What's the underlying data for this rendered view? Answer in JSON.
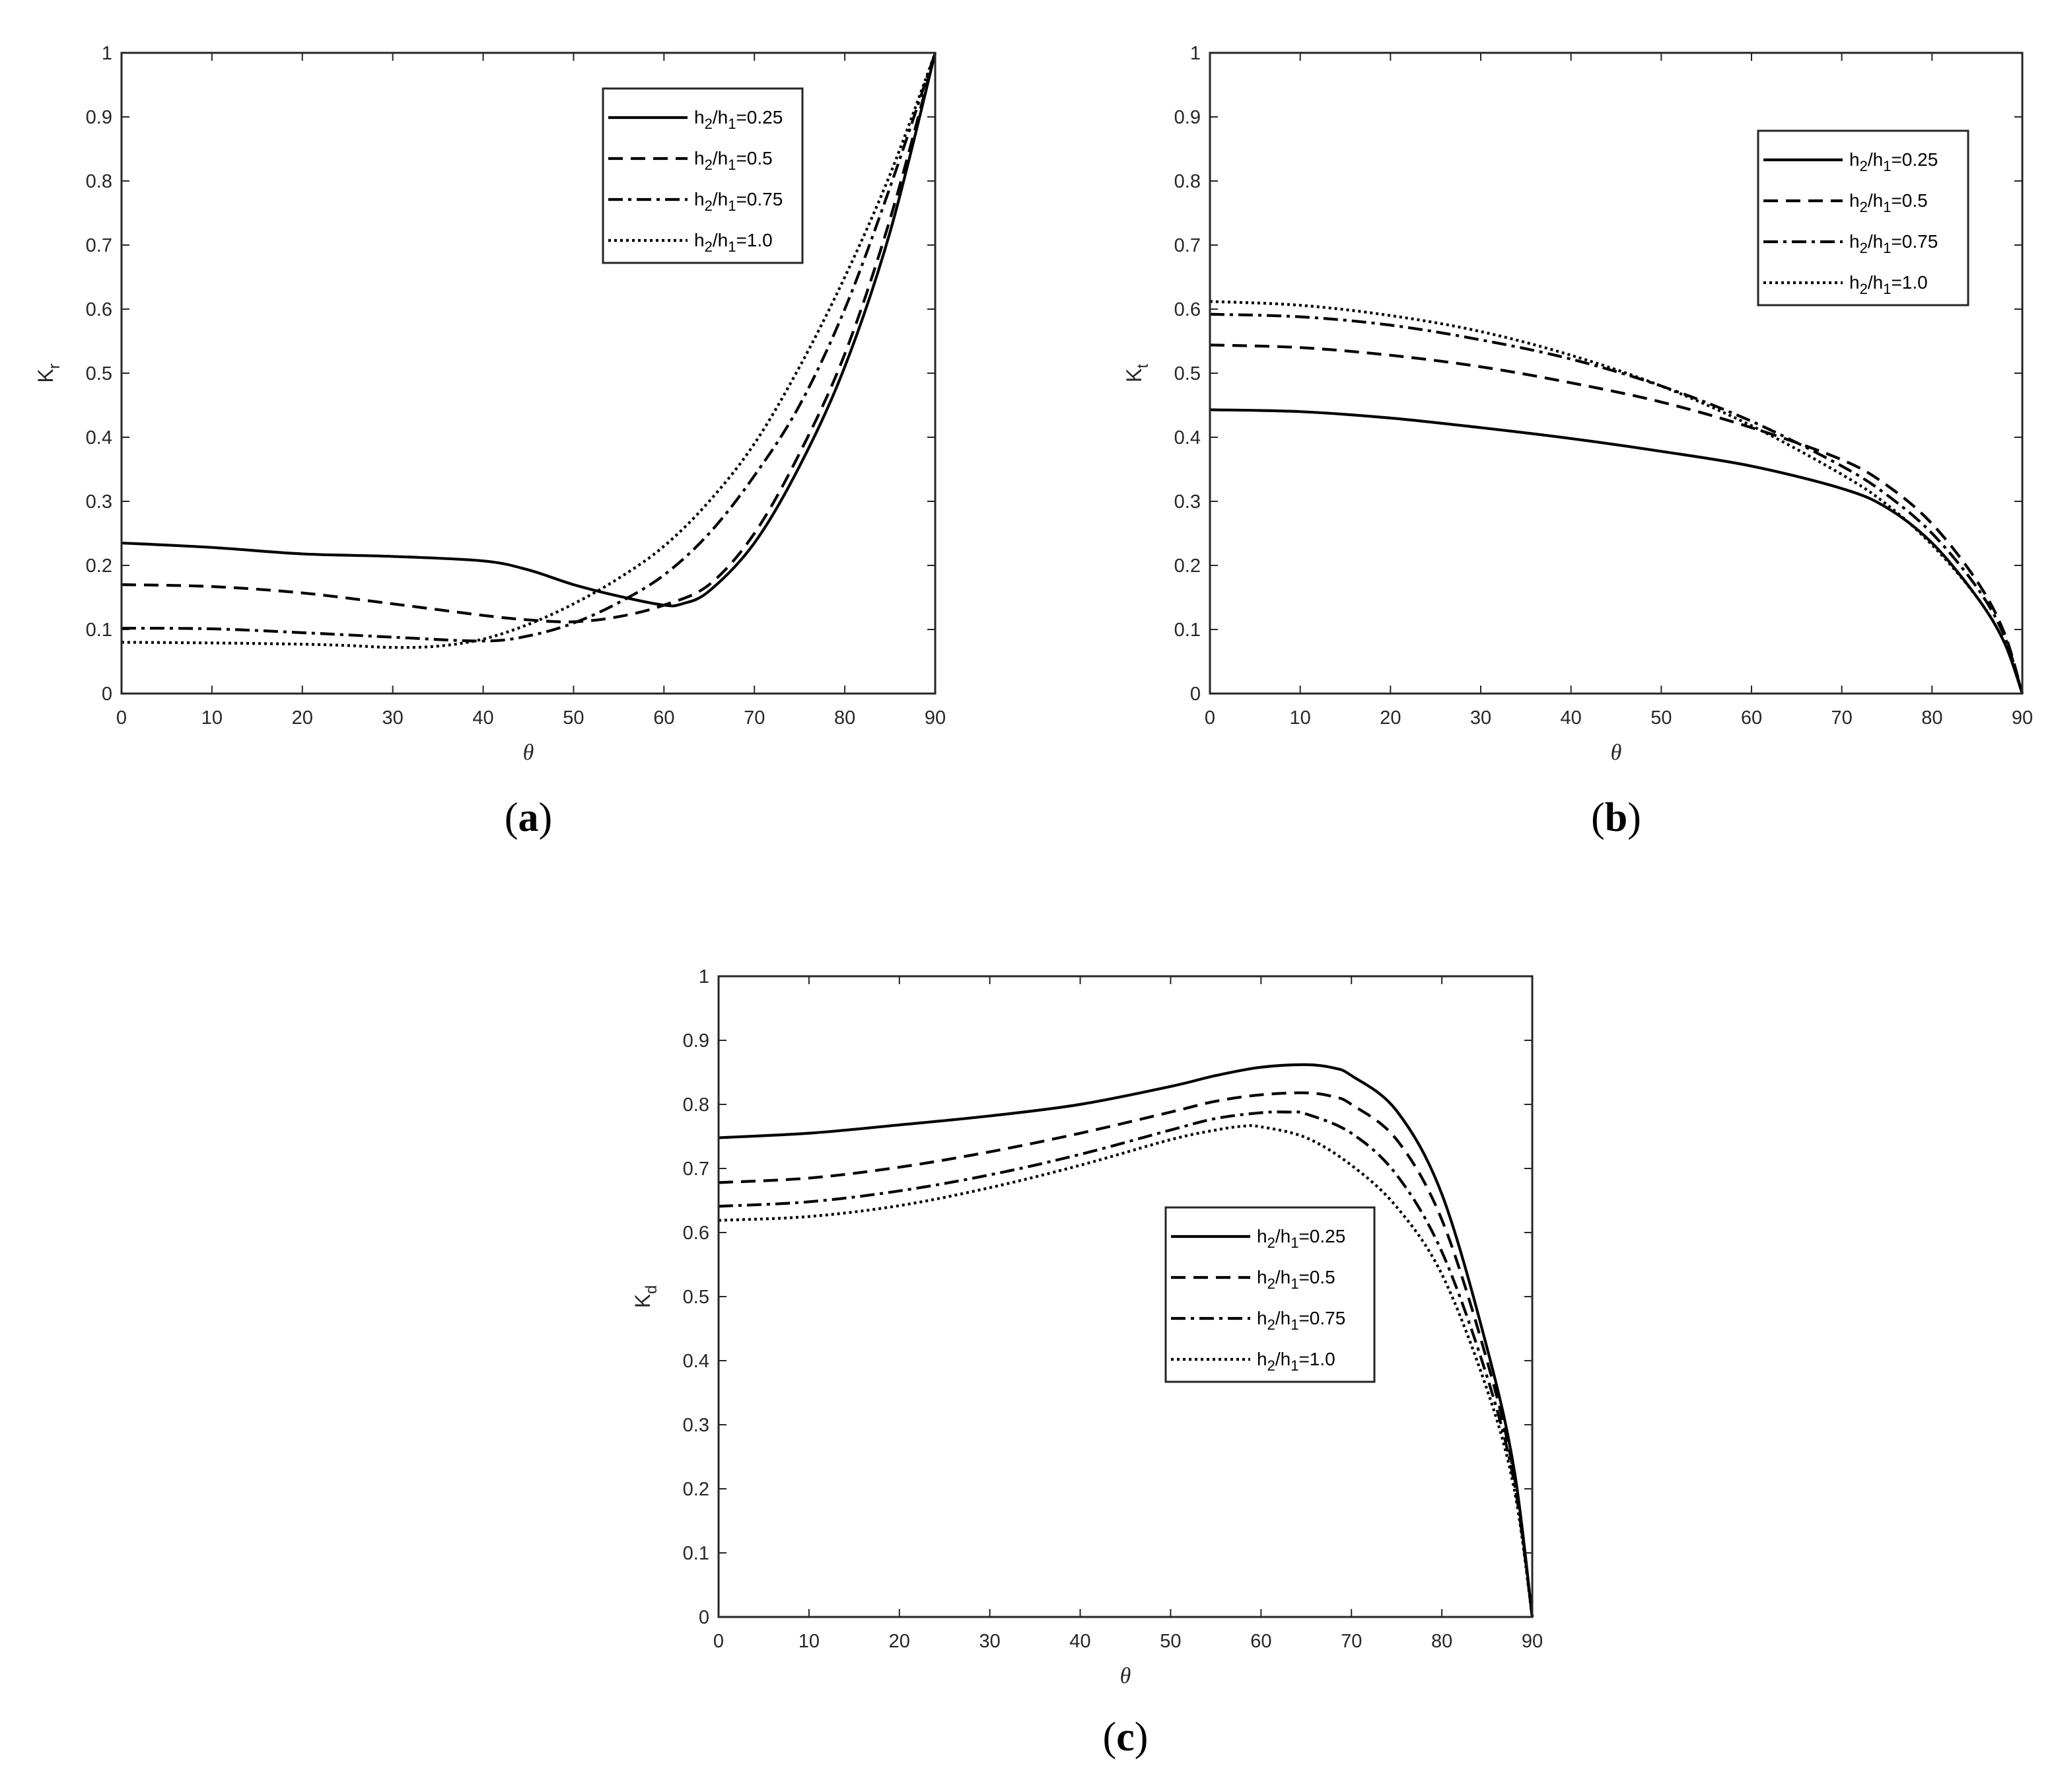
{
  "chart_data": [
    {
      "id": "a",
      "type": "line",
      "panel_label": {
        "open": "(",
        "letter": "a",
        "close": ")"
      },
      "xlabel": "θ",
      "ylabel": {
        "base": "K",
        "sub": "r"
      },
      "xlim": [
        0,
        90
      ],
      "ylim": [
        0,
        1
      ],
      "xticks": [
        "0",
        "10",
        "20",
        "30",
        "40",
        "50",
        "60",
        "70",
        "80",
        "90"
      ],
      "yticks": [
        "0",
        "0.1",
        "0.2",
        "0.3",
        "0.4",
        "0.5",
        "0.6",
        "0.7",
        "0.8",
        "0.9",
        "1"
      ],
      "grid": false,
      "legend_position": "top-right",
      "series": [
        {
          "name": "h2/h1=0.25",
          "style": "solid",
          "x": [
            0,
            10,
            20,
            30,
            40,
            45,
            50,
            55,
            60,
            62,
            65,
            70,
            75,
            80,
            85,
            90
          ],
          "y": [
            0.235,
            0.228,
            0.218,
            0.214,
            0.207,
            0.193,
            0.17,
            0.152,
            0.138,
            0.14,
            0.16,
            0.235,
            0.355,
            0.51,
            0.72,
            1.0
          ]
        },
        {
          "name": "h2/h1=0.5",
          "style": "dashed",
          "x": [
            0,
            10,
            20,
            30,
            40,
            45,
            50,
            55,
            60,
            65,
            70,
            75,
            80,
            85,
            90
          ],
          "y": [
            0.17,
            0.167,
            0.157,
            0.14,
            0.122,
            0.115,
            0.112,
            0.12,
            0.138,
            0.17,
            0.25,
            0.375,
            0.53,
            0.74,
            1.0
          ]
        },
        {
          "name": "h2/h1=0.75",
          "style": "dashdot",
          "x": [
            0,
            10,
            20,
            30,
            40,
            45,
            50,
            55,
            60,
            65,
            70,
            75,
            80,
            85,
            90
          ],
          "y": [
            0.102,
            0.101,
            0.095,
            0.088,
            0.082,
            0.09,
            0.11,
            0.142,
            0.185,
            0.25,
            0.34,
            0.45,
            0.6,
            0.79,
            1.0
          ]
        },
        {
          "name": "h2/h1=1.0",
          "style": "dotted",
          "x": [
            0,
            10,
            20,
            25,
            30,
            35,
            40,
            45,
            50,
            55,
            60,
            65,
            70,
            75,
            80,
            85,
            90
          ],
          "y": [
            0.08,
            0.079,
            0.077,
            0.075,
            0.072,
            0.074,
            0.085,
            0.108,
            0.14,
            0.18,
            0.23,
            0.3,
            0.39,
            0.51,
            0.65,
            0.81,
            1.0
          ]
        }
      ]
    },
    {
      "id": "b",
      "type": "line",
      "panel_label": {
        "open": "(",
        "letter": "b",
        "close": ")"
      },
      "xlabel": "θ",
      "ylabel": {
        "base": "K",
        "sub": "t"
      },
      "xlim": [
        0,
        90
      ],
      "ylim": [
        0,
        1
      ],
      "xticks": [
        "0",
        "10",
        "20",
        "30",
        "40",
        "50",
        "60",
        "70",
        "80",
        "90"
      ],
      "yticks": [
        "0",
        "0.1",
        "0.2",
        "0.3",
        "0.4",
        "0.5",
        "0.6",
        "0.7",
        "0.8",
        "0.9",
        "1"
      ],
      "grid": false,
      "legend_position": "top-right",
      "series": [
        {
          "name": "h2/h1=0.25",
          "style": "solid",
          "x": [
            0,
            10,
            20,
            30,
            40,
            50,
            60,
            70,
            75,
            80,
            85,
            88,
            90
          ],
          "y": [
            0.443,
            0.44,
            0.43,
            0.415,
            0.398,
            0.378,
            0.355,
            0.32,
            0.29,
            0.235,
            0.15,
            0.08,
            0.0
          ]
        },
        {
          "name": "h2/h1=0.5",
          "style": "dashed",
          "x": [
            0,
            10,
            20,
            30,
            40,
            50,
            60,
            70,
            75,
            80,
            85,
            88,
            90
          ],
          "y": [
            0.544,
            0.54,
            0.528,
            0.51,
            0.485,
            0.455,
            0.415,
            0.365,
            0.325,
            0.265,
            0.175,
            0.095,
            0.0
          ]
        },
        {
          "name": "h2/h1=0.75",
          "style": "dashdot",
          "x": [
            0,
            10,
            20,
            30,
            40,
            50,
            60,
            70,
            75,
            80,
            85,
            88,
            90
          ],
          "y": [
            0.592,
            0.588,
            0.575,
            0.552,
            0.522,
            0.48,
            0.425,
            0.355,
            0.31,
            0.25,
            0.165,
            0.09,
            0.0
          ]
        },
        {
          "name": "h2/h1=1.0",
          "style": "dotted",
          "x": [
            0,
            10,
            20,
            30,
            40,
            50,
            60,
            70,
            75,
            80,
            85,
            88,
            90
          ],
          "y": [
            0.612,
            0.606,
            0.59,
            0.565,
            0.528,
            0.48,
            0.418,
            0.342,
            0.295,
            0.232,
            0.15,
            0.08,
            0.0
          ]
        }
      ]
    },
    {
      "id": "c",
      "type": "line",
      "panel_label": {
        "open": "(",
        "letter": "c",
        "close": ")"
      },
      "xlabel": "θ",
      "ylabel": {
        "base": "K",
        "sub": "d"
      },
      "xlim": [
        0,
        90
      ],
      "ylim": [
        0,
        1
      ],
      "xticks": [
        "0",
        "10",
        "20",
        "30",
        "40",
        "50",
        "60",
        "70",
        "80",
        "90"
      ],
      "yticks": [
        "0",
        "0.1",
        "0.2",
        "0.3",
        "0.4",
        "0.5",
        "0.6",
        "0.7",
        "0.8",
        "0.9",
        "1"
      ],
      "grid": false,
      "legend_position": "center-right",
      "series": [
        {
          "name": "h2/h1=0.25",
          "style": "solid",
          "x": [
            0,
            10,
            20,
            30,
            40,
            50,
            55,
            60,
            65,
            68,
            70,
            75,
            80,
            85,
            88,
            90
          ],
          "y": [
            0.748,
            0.755,
            0.768,
            0.782,
            0.8,
            0.828,
            0.845,
            0.858,
            0.862,
            0.857,
            0.845,
            0.79,
            0.66,
            0.42,
            0.23,
            0.0
          ]
        },
        {
          "name": "h2/h1=0.5",
          "style": "dashed",
          "x": [
            0,
            10,
            20,
            30,
            40,
            50,
            55,
            60,
            65,
            68,
            70,
            75,
            80,
            85,
            88,
            90
          ],
          "y": [
            0.678,
            0.685,
            0.702,
            0.726,
            0.755,
            0.788,
            0.805,
            0.815,
            0.818,
            0.812,
            0.8,
            0.745,
            0.62,
            0.4,
            0.22,
            0.0
          ]
        },
        {
          "name": "h2/h1=0.75",
          "style": "dashdot",
          "x": [
            0,
            10,
            20,
            30,
            40,
            50,
            55,
            60,
            63,
            65,
            70,
            75,
            80,
            85,
            88,
            90
          ],
          "y": [
            0.641,
            0.648,
            0.665,
            0.69,
            0.722,
            0.76,
            0.778,
            0.787,
            0.788,
            0.785,
            0.755,
            0.69,
            0.57,
            0.375,
            0.21,
            0.0
          ]
        },
        {
          "name": "h2/h1=1.0",
          "style": "dotted",
          "x": [
            0,
            10,
            20,
            30,
            40,
            50,
            55,
            58,
            60,
            65,
            70,
            75,
            80,
            85,
            88,
            90
          ],
          "y": [
            0.619,
            0.625,
            0.642,
            0.67,
            0.705,
            0.745,
            0.76,
            0.766,
            0.765,
            0.748,
            0.705,
            0.64,
            0.535,
            0.355,
            0.2,
            0.0
          ]
        }
      ]
    }
  ]
}
